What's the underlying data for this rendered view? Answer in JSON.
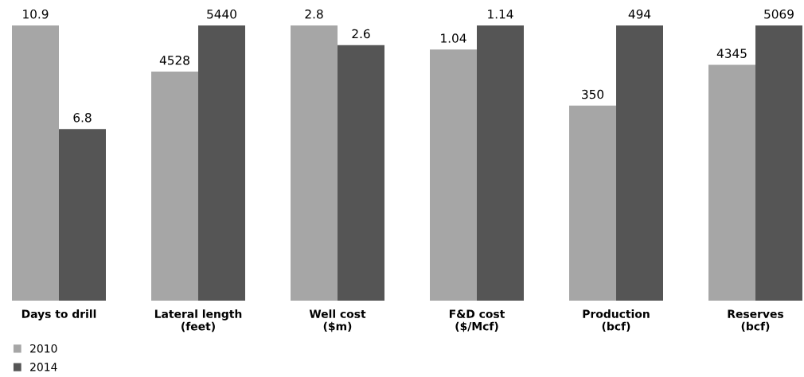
{
  "chart_data": [
    {
      "type": "bar",
      "categories": [
        "Days to drill"
      ],
      "tick_labels": "x",
      "data_labels": true,
      "legend": "bottom left",
      "series": [
        {
          "name": "2010",
          "color": "#a6a6a6",
          "values": [
            10.9
          ]
        },
        {
          "name": "2014",
          "color": "#555555",
          "values": [
            6.8
          ]
        }
      ]
    },
    {
      "type": "bar",
      "categories": [
        "Lateral length\n(feet)"
      ],
      "tick_labels": "x",
      "data_labels": true,
      "series": [
        {
          "color": "#a6a6a6",
          "values": [
            4528
          ]
        },
        {
          "color": "#555555",
          "values": [
            5440
          ]
        }
      ]
    },
    {
      "type": "bar",
      "categories": [
        "Well cost\n($m)"
      ],
      "tick_labels": "x",
      "data_labels": true,
      "series": [
        {
          "color": "#a6a6a6",
          "values": [
            2.8
          ]
        },
        {
          "color": "#555555",
          "values": [
            2.6
          ]
        }
      ]
    },
    {
      "type": "bar",
      "categories": [
        "F&D cost\n($/Mcf)"
      ],
      "tick_labels": "x",
      "data_labels": true,
      "series": [
        {
          "color": "#a6a6a6",
          "values": [
            1.04
          ]
        },
        {
          "color": "#555555",
          "values": [
            1.14
          ]
        }
      ]
    },
    {
      "type": "bar",
      "categories": [
        "Production\n(bcf)"
      ],
      "tick_labels": "x",
      "data_labels": true,
      "series": [
        {
          "color": "#a6a6a6",
          "values": [
            350
          ]
        },
        {
          "color": "#555555",
          "values": [
            494
          ]
        }
      ]
    },
    {
      "type": "bar",
      "categories": [
        "Reserves\n(bcf)"
      ],
      "tick_labels": "x",
      "data_labels": true,
      "series": [
        {
          "color": "#a6a6a6",
          "values": [
            4345
          ]
        },
        {
          "color": "#555555",
          "values": [
            5069
          ]
        }
      ]
    }
  ]
}
